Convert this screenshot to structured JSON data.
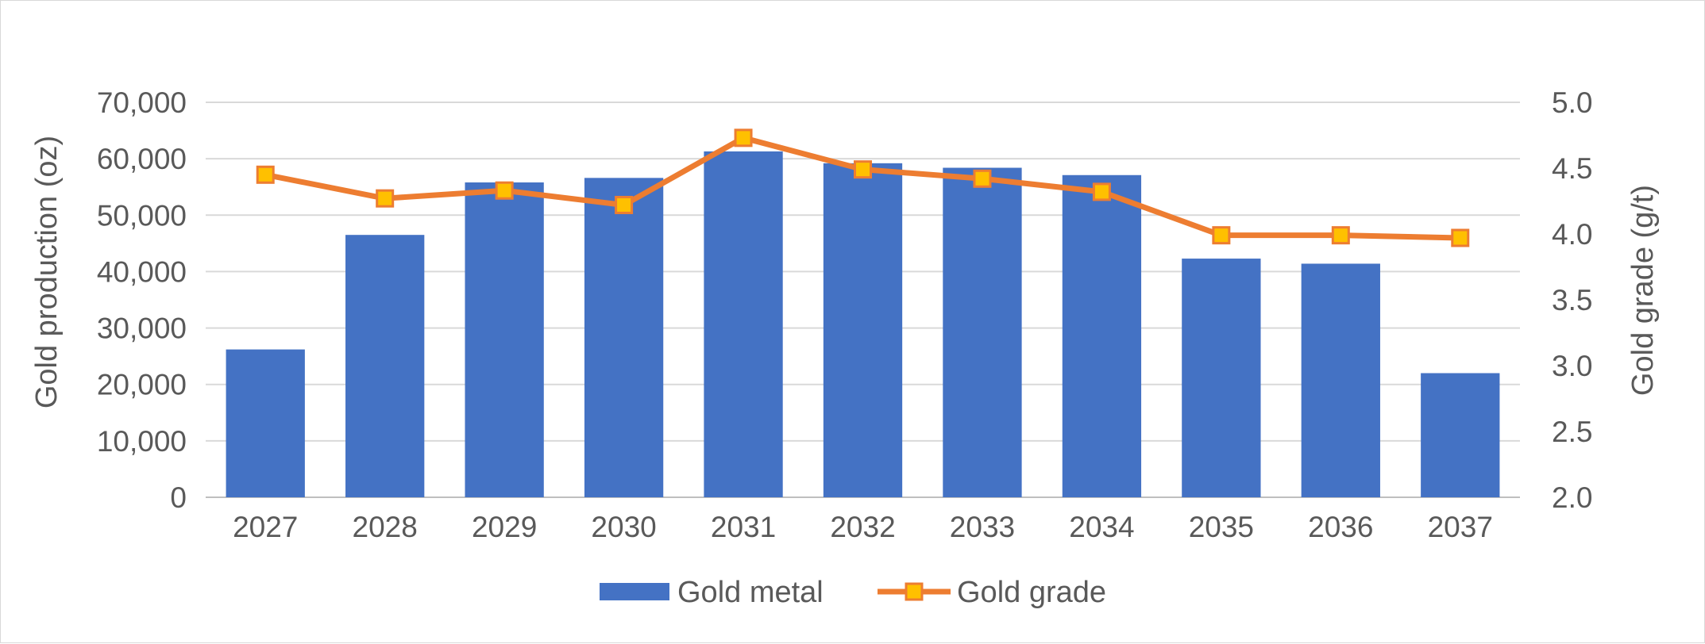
{
  "chart_data": {
    "type": "bar",
    "categories": [
      "2027",
      "2028",
      "2029",
      "2030",
      "2031",
      "2032",
      "2033",
      "2034",
      "2035",
      "2036",
      "2037"
    ],
    "series": [
      {
        "name": "Gold metal",
        "type": "bar",
        "axis": "left",
        "color": "#4472C4",
        "values": [
          26200,
          46500,
          55800,
          56600,
          61300,
          59200,
          58400,
          57100,
          42300,
          41400,
          22000
        ]
      },
      {
        "name": "Gold grade",
        "type": "line",
        "axis": "right",
        "color": "#ED7D31",
        "marker_color": "#FFC000",
        "values": [
          4.45,
          4.27,
          4.33,
          4.22,
          4.73,
          4.49,
          4.42,
          4.32,
          3.99,
          3.99,
          3.97
        ]
      }
    ],
    "ylabel": "Gold production (oz)",
    "y2label": "Gold grade (g/t)",
    "ylim": [
      0,
      70000
    ],
    "y2lim": [
      2.0,
      5.0
    ],
    "yticks": [
      "0",
      "10,000",
      "20,000",
      "30,000",
      "40,000",
      "50,000",
      "60,000",
      "70,000"
    ],
    "y2ticks": [
      "2.0",
      "2.5",
      "3.0",
      "3.5",
      "4.0",
      "4.5",
      "5.0"
    ],
    "grid": true,
    "legend": "bottom"
  }
}
